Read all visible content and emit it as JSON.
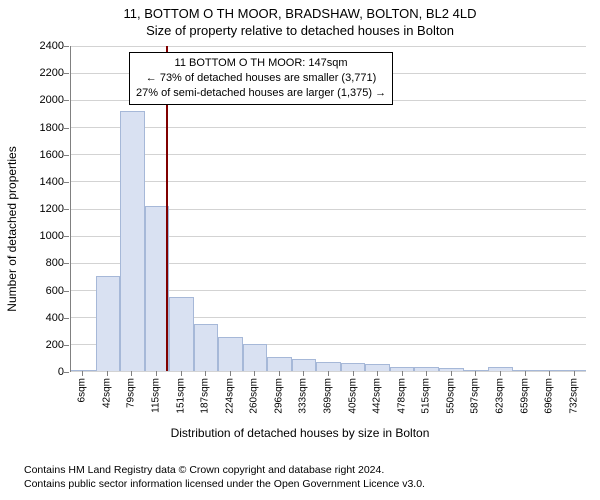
{
  "title_main": "11, BOTTOM O TH MOOR, BRADSHAW, BOLTON, BL2 4LD",
  "title_sub": "Size of property relative to detached houses in Bolton",
  "y_axis_label": "Number of detached properties",
  "x_axis_title": "Distribution of detached houses by size in Bolton",
  "annotation": {
    "line1": "11 BOTTOM O TH MOOR: 147sqm",
    "line2": "← 73% of detached houses are smaller (3,771)",
    "line3": "27% of semi-detached houses are larger (1,375) →"
  },
  "marker": {
    "position_category": "147sqm",
    "color": "#800000"
  },
  "chart": {
    "type": "histogram",
    "ylim_max": 2400,
    "y_ticks": [
      0,
      200,
      400,
      600,
      800,
      1000,
      1200,
      1400,
      1600,
      1800,
      2000,
      2200,
      2400
    ],
    "x_tick_labels": [
      "6sqm",
      "42sqm",
      "79sqm",
      "115sqm",
      "151sqm",
      "187sqm",
      "224sqm",
      "260sqm",
      "296sqm",
      "333sqm",
      "369sqm",
      "405sqm",
      "442sqm",
      "478sqm",
      "515sqm",
      "550sqm",
      "587sqm",
      "623sqm",
      "659sqm",
      "696sqm",
      "732sqm"
    ],
    "bar_values": [
      0,
      700,
      1920,
      1220,
      550,
      350,
      250,
      200,
      100,
      90,
      70,
      60,
      50,
      30,
      30,
      20,
      10,
      30,
      5,
      5,
      0
    ],
    "bar_fill": "#d9e1f2",
    "bar_stroke": "#a6b8d8",
    "grid_color": "#d3d3d3",
    "background_color": "#ffffff",
    "axis_color": "#808080",
    "title_fontsize": 13,
    "label_fontsize": 12,
    "tick_fontsize": 11
  },
  "footer": {
    "line1": "Contains HM Land Registry data © Crown copyright and database right 2024.",
    "line2": "Contains public sector information licensed under the Open Government Licence v3.0."
  }
}
